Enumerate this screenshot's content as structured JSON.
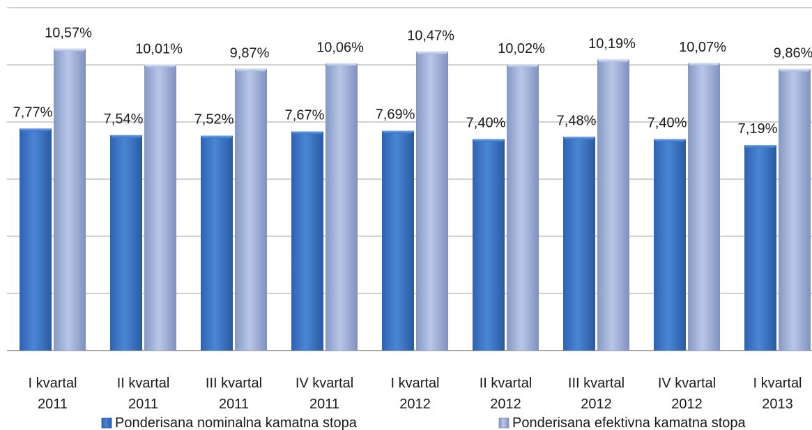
{
  "chart_data": {
    "type": "bar",
    "title": "",
    "xlabel": "",
    "ylabel": "",
    "grid": true,
    "legend_position": "bottom",
    "ylim": [
      0,
      12
    ],
    "categories": [
      [
        "I kvartal",
        "2011"
      ],
      [
        "II kvartal",
        "2011"
      ],
      [
        "III kvartal",
        "2011"
      ],
      [
        "IV kvartal",
        "2011"
      ],
      [
        "I kvartal",
        "2012"
      ],
      [
        "II kvartal",
        "2012"
      ],
      [
        "III kvartal",
        "2012"
      ],
      [
        "IV kvartal",
        "2012"
      ],
      [
        "I kvartal",
        "2013"
      ]
    ],
    "series": [
      {
        "name": "Ponderisana nominalna kamatna stopa",
        "color": "#3b73c4",
        "values": [
          7.77,
          7.54,
          7.52,
          7.67,
          7.69,
          7.4,
          7.48,
          7.4,
          7.19
        ],
        "labels": [
          "7,77%",
          "7,54%",
          "7,52%",
          "7,67%",
          "7,69%",
          "7,40%",
          "7,48%",
          "7,40%",
          "7,19%"
        ]
      },
      {
        "name": "Ponderisana efektivna kamatna stopa",
        "color": "#9aaed6",
        "values": [
          10.57,
          10.01,
          9.87,
          10.06,
          10.47,
          10.02,
          10.19,
          10.07,
          9.86
        ],
        "labels": [
          "10,57%",
          "10,01%",
          "9,87%",
          "10,06%",
          "10,47%",
          "10,02%",
          "10,19%",
          "10,07%",
          "9,86%"
        ]
      }
    ]
  }
}
